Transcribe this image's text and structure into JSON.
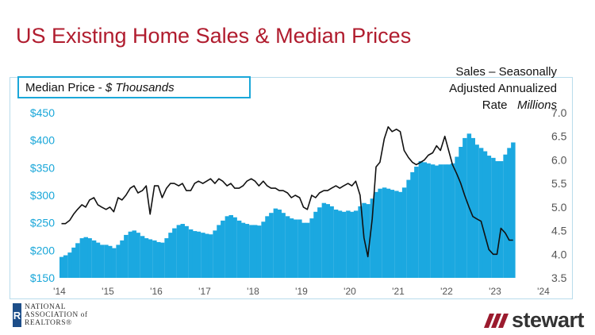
{
  "title": "US Existing Home Sales & Median Prices",
  "median_label_prefix": "Median Price - ",
  "median_label_units": "$ Thousands",
  "sales_label_line1": "Sales – Seasonally",
  "sales_label_line2": "Adjusted Annualized",
  "sales_label_line3a": "Rate",
  "sales_label_line3b": "Millions",
  "logos": {
    "nar_mark": "R",
    "nar_line1": "NATIONAL",
    "nar_line2": "ASSOCIATION of",
    "nar_line3": "REALTORS®",
    "stewart": "stewart"
  },
  "colors": {
    "area": "#1ba8e0",
    "line": "#111111",
    "axis_text": "#1aa7d9",
    "right_axis_text": "#555555",
    "title": "#b01c2e"
  },
  "chart_data": {
    "type": "area+line",
    "x_range": [
      2014.0,
      2024.0
    ],
    "x_ticks": [
      {
        "value": 2014,
        "label": "'14"
      },
      {
        "value": 2015,
        "label": "'15"
      },
      {
        "value": 2016,
        "label": "'16"
      },
      {
        "value": 2017,
        "label": "'17"
      },
      {
        "value": 2018,
        "label": "'18"
      },
      {
        "value": 2019,
        "label": "'19"
      },
      {
        "value": 2020,
        "label": "'20"
      },
      {
        "value": 2021,
        "label": "'21"
      },
      {
        "value": 2022,
        "label": "'22"
      },
      {
        "value": 2023,
        "label": "'23"
      },
      {
        "value": 2024,
        "label": "'24"
      }
    ],
    "y_left": {
      "range": [
        150,
        450
      ],
      "ticks": [
        150,
        200,
        250,
        300,
        350,
        400,
        450
      ],
      "tick_labels": [
        "$150",
        "$200",
        "$250",
        "$300",
        "$350",
        "$400",
        "$450"
      ]
    },
    "y_right": {
      "range": [
        3.5,
        7.0
      ],
      "ticks": [
        3.5,
        4.0,
        4.5,
        5.0,
        5.5,
        6.0,
        6.5,
        7.0
      ],
      "tick_labels": [
        "3.5",
        "4.0",
        "4.5",
        "5.0",
        "5.5",
        "6.0",
        "6.5",
        "7.0"
      ]
    },
    "series": [
      {
        "kind": "area",
        "axis": "left",
        "points": [
          [
            2014.0,
            188
          ],
          [
            2014.08,
            191
          ],
          [
            2014.17,
            196
          ],
          [
            2014.25,
            205
          ],
          [
            2014.33,
            213
          ],
          [
            2014.42,
            222
          ],
          [
            2014.5,
            224
          ],
          [
            2014.58,
            222
          ],
          [
            2014.67,
            218
          ],
          [
            2014.75,
            214
          ],
          [
            2014.83,
            210
          ],
          [
            2014.92,
            210
          ],
          [
            2015.0,
            208
          ],
          [
            2015.08,
            204
          ],
          [
            2015.17,
            210
          ],
          [
            2015.25,
            218
          ],
          [
            2015.33,
            228
          ],
          [
            2015.42,
            234
          ],
          [
            2015.5,
            236
          ],
          [
            2015.58,
            232
          ],
          [
            2015.67,
            226
          ],
          [
            2015.75,
            222
          ],
          [
            2015.83,
            220
          ],
          [
            2015.92,
            218
          ],
          [
            2016.0,
            215
          ],
          [
            2016.08,
            214
          ],
          [
            2016.17,
            222
          ],
          [
            2016.25,
            232
          ],
          [
            2016.33,
            240
          ],
          [
            2016.42,
            246
          ],
          [
            2016.5,
            248
          ],
          [
            2016.58,
            244
          ],
          [
            2016.67,
            238
          ],
          [
            2016.75,
            235
          ],
          [
            2016.83,
            234
          ],
          [
            2016.92,
            232
          ],
          [
            2017.0,
            230
          ],
          [
            2017.08,
            229
          ],
          [
            2017.17,
            236
          ],
          [
            2017.25,
            246
          ],
          [
            2017.33,
            254
          ],
          [
            2017.42,
            262
          ],
          [
            2017.5,
            264
          ],
          [
            2017.58,
            260
          ],
          [
            2017.67,
            254
          ],
          [
            2017.75,
            250
          ],
          [
            2017.83,
            248
          ],
          [
            2017.92,
            246
          ],
          [
            2018.0,
            246
          ],
          [
            2018.08,
            245
          ],
          [
            2018.17,
            252
          ],
          [
            2018.25,
            262
          ],
          [
            2018.33,
            268
          ],
          [
            2018.42,
            276
          ],
          [
            2018.5,
            274
          ],
          [
            2018.58,
            268
          ],
          [
            2018.67,
            262
          ],
          [
            2018.75,
            258
          ],
          [
            2018.83,
            256
          ],
          [
            2018.92,
            256
          ],
          [
            2019.0,
            250
          ],
          [
            2019.08,
            250
          ],
          [
            2019.17,
            258
          ],
          [
            2019.25,
            270
          ],
          [
            2019.33,
            278
          ],
          [
            2019.42,
            286
          ],
          [
            2019.5,
            284
          ],
          [
            2019.58,
            280
          ],
          [
            2019.67,
            274
          ],
          [
            2019.75,
            272
          ],
          [
            2019.83,
            270
          ],
          [
            2019.92,
            272
          ],
          [
            2020.0,
            270
          ],
          [
            2020.08,
            272
          ],
          [
            2020.17,
            280
          ],
          [
            2020.25,
            286
          ],
          [
            2020.33,
            284
          ],
          [
            2020.42,
            294
          ],
          [
            2020.5,
            306
          ],
          [
            2020.58,
            312
          ],
          [
            2020.67,
            314
          ],
          [
            2020.75,
            312
          ],
          [
            2020.83,
            310
          ],
          [
            2020.92,
            308
          ],
          [
            2021.0,
            306
          ],
          [
            2021.08,
            314
          ],
          [
            2021.17,
            328
          ],
          [
            2021.25,
            342
          ],
          [
            2021.33,
            352
          ],
          [
            2021.42,
            362
          ],
          [
            2021.5,
            360
          ],
          [
            2021.58,
            358
          ],
          [
            2021.67,
            356
          ],
          [
            2021.75,
            354
          ],
          [
            2021.83,
            356
          ],
          [
            2021.92,
            356
          ],
          [
            2022.0,
            356
          ],
          [
            2022.08,
            358
          ],
          [
            2022.17,
            370
          ],
          [
            2022.25,
            388
          ],
          [
            2022.33,
            404
          ],
          [
            2022.42,
            412
          ],
          [
            2022.5,
            404
          ],
          [
            2022.58,
            392
          ],
          [
            2022.67,
            386
          ],
          [
            2022.75,
            380
          ],
          [
            2022.83,
            372
          ],
          [
            2022.92,
            368
          ],
          [
            2023.0,
            362
          ],
          [
            2023.08,
            362
          ],
          [
            2023.17,
            374
          ],
          [
            2023.25,
            386
          ],
          [
            2023.33,
            396
          ]
        ]
      },
      {
        "kind": "line",
        "axis": "right",
        "points": [
          [
            2014.0,
            4.65
          ],
          [
            2014.08,
            4.65
          ],
          [
            2014.17,
            4.72
          ],
          [
            2014.25,
            4.85
          ],
          [
            2014.33,
            4.95
          ],
          [
            2014.42,
            5.05
          ],
          [
            2014.5,
            5.0
          ],
          [
            2014.58,
            5.15
          ],
          [
            2014.67,
            5.2
          ],
          [
            2014.75,
            5.05
          ],
          [
            2014.83,
            5.0
          ],
          [
            2014.92,
            4.95
          ],
          [
            2015.0,
            5.0
          ],
          [
            2015.08,
            4.9
          ],
          [
            2015.17,
            5.2
          ],
          [
            2015.25,
            5.15
          ],
          [
            2015.33,
            5.25
          ],
          [
            2015.42,
            5.4
          ],
          [
            2015.5,
            5.45
          ],
          [
            2015.58,
            5.3
          ],
          [
            2015.67,
            5.35
          ],
          [
            2015.75,
            5.45
          ],
          [
            2015.83,
            4.85
          ],
          [
            2015.92,
            5.45
          ],
          [
            2016.0,
            5.45
          ],
          [
            2016.08,
            5.2
          ],
          [
            2016.17,
            5.4
          ],
          [
            2016.25,
            5.5
          ],
          [
            2016.33,
            5.5
          ],
          [
            2016.42,
            5.45
          ],
          [
            2016.5,
            5.5
          ],
          [
            2016.58,
            5.35
          ],
          [
            2016.67,
            5.35
          ],
          [
            2016.75,
            5.5
          ],
          [
            2016.83,
            5.55
          ],
          [
            2016.92,
            5.5
          ],
          [
            2017.0,
            5.55
          ],
          [
            2017.08,
            5.6
          ],
          [
            2017.17,
            5.5
          ],
          [
            2017.25,
            5.6
          ],
          [
            2017.33,
            5.55
          ],
          [
            2017.42,
            5.45
          ],
          [
            2017.5,
            5.5
          ],
          [
            2017.58,
            5.4
          ],
          [
            2017.67,
            5.4
          ],
          [
            2017.75,
            5.45
          ],
          [
            2017.83,
            5.55
          ],
          [
            2017.92,
            5.6
          ],
          [
            2018.0,
            5.55
          ],
          [
            2018.08,
            5.45
          ],
          [
            2018.17,
            5.55
          ],
          [
            2018.25,
            5.45
          ],
          [
            2018.33,
            5.4
          ],
          [
            2018.42,
            5.4
          ],
          [
            2018.5,
            5.35
          ],
          [
            2018.58,
            5.35
          ],
          [
            2018.67,
            5.3
          ],
          [
            2018.75,
            5.2
          ],
          [
            2018.83,
            5.25
          ],
          [
            2018.92,
            5.2
          ],
          [
            2019.0,
            5.0
          ],
          [
            2019.08,
            4.95
          ],
          [
            2019.17,
            5.25
          ],
          [
            2019.25,
            5.2
          ],
          [
            2019.33,
            5.3
          ],
          [
            2019.42,
            5.35
          ],
          [
            2019.5,
            5.35
          ],
          [
            2019.58,
            5.4
          ],
          [
            2019.67,
            5.45
          ],
          [
            2019.75,
            5.4
          ],
          [
            2019.83,
            5.45
          ],
          [
            2019.92,
            5.5
          ],
          [
            2020.0,
            5.45
          ],
          [
            2020.08,
            5.55
          ],
          [
            2020.17,
            5.25
          ],
          [
            2020.25,
            4.35
          ],
          [
            2020.33,
            3.95
          ],
          [
            2020.42,
            4.75
          ],
          [
            2020.5,
            5.85
          ],
          [
            2020.58,
            5.95
          ],
          [
            2020.67,
            6.45
          ],
          [
            2020.75,
            6.7
          ],
          [
            2020.83,
            6.6
          ],
          [
            2020.92,
            6.65
          ],
          [
            2021.0,
            6.6
          ],
          [
            2021.08,
            6.2
          ],
          [
            2021.17,
            6.05
          ],
          [
            2021.25,
            5.95
          ],
          [
            2021.33,
            5.9
          ],
          [
            2021.42,
            5.95
          ],
          [
            2021.5,
            6.0
          ],
          [
            2021.58,
            6.1
          ],
          [
            2021.67,
            6.15
          ],
          [
            2021.75,
            6.3
          ],
          [
            2021.83,
            6.2
          ],
          [
            2021.92,
            6.5
          ],
          [
            2022.0,
            6.2
          ],
          [
            2022.08,
            5.9
          ],
          [
            2022.17,
            5.7
          ],
          [
            2022.25,
            5.5
          ],
          [
            2022.33,
            5.25
          ],
          [
            2022.42,
            5.0
          ],
          [
            2022.5,
            4.8
          ],
          [
            2022.58,
            4.75
          ],
          [
            2022.67,
            4.7
          ],
          [
            2022.75,
            4.4
          ],
          [
            2022.83,
            4.1
          ],
          [
            2022.92,
            4.0
          ],
          [
            2023.0,
            4.0
          ],
          [
            2023.08,
            4.55
          ],
          [
            2023.17,
            4.45
          ],
          [
            2023.25,
            4.3
          ],
          [
            2023.33,
            4.3
          ]
        ]
      }
    ]
  }
}
